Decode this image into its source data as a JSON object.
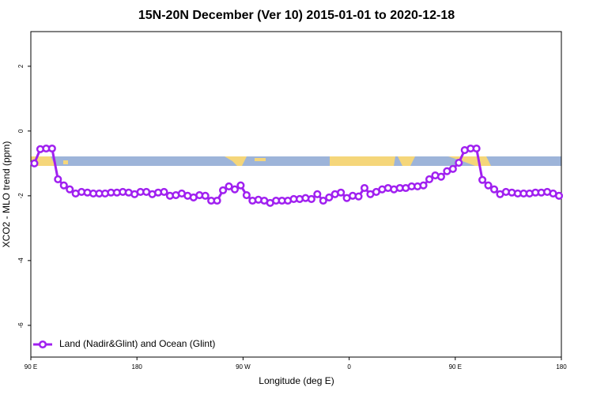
{
  "chart_data": {
    "type": "line",
    "title": "15N-20N December (Ver 10)   2015-01-01 to 2020-12-18",
    "x_label": "Longitude (deg E)",
    "y_label": "XCO2 - MLO trend (ppm)",
    "x": [
      93,
      98,
      103,
      108,
      113,
      118,
      123,
      128,
      133,
      138,
      143,
      148,
      153,
      158,
      163,
      168,
      173,
      178,
      183,
      188,
      193,
      198,
      203,
      208,
      213,
      218,
      223,
      228,
      233,
      238,
      243,
      248,
      253,
      258,
      263,
      268,
      273,
      278,
      283,
      288,
      293,
      298,
      303,
      308,
      313,
      318,
      323,
      328,
      333,
      338,
      343,
      348,
      353,
      358,
      363,
      368,
      373,
      378,
      383,
      388,
      393,
      398,
      403,
      408,
      413,
      418,
      423,
      428,
      433,
      438,
      443,
      448,
      453,
      458,
      463,
      468,
      473,
      478,
      483,
      488,
      493,
      498,
      503,
      508,
      513,
      518,
      523,
      528,
      533,
      538
    ],
    "series": [
      {
        "name": "Land (Nadir&Glint) and Ocean (Glint)",
        "color": "#a020f0",
        "values": [
          -1.0,
          -0.56,
          -0.54,
          -0.54,
          -1.49,
          -1.68,
          -1.8,
          -1.93,
          -1.88,
          -1.9,
          -1.93,
          -1.93,
          -1.93,
          -1.9,
          -1.9,
          -1.88,
          -1.9,
          -1.95,
          -1.88,
          -1.88,
          -1.95,
          -1.9,
          -1.88,
          -2.0,
          -1.98,
          -1.93,
          -2.0,
          -2.05,
          -1.98,
          -2.0,
          -2.15,
          -2.15,
          -1.83,
          -1.71,
          -1.8,
          -1.68,
          -1.98,
          -2.15,
          -2.12,
          -2.15,
          -2.22,
          -2.15,
          -2.15,
          -2.15,
          -2.1,
          -2.1,
          -2.07,
          -2.1,
          -1.95,
          -2.15,
          -2.05,
          -1.95,
          -1.9,
          -2.07,
          -2.0,
          -2.02,
          -1.76,
          -1.95,
          -1.88,
          -1.8,
          -1.76,
          -1.8,
          -1.76,
          -1.76,
          -1.71,
          -1.71,
          -1.68,
          -1.49,
          -1.37,
          -1.41,
          -1.24,
          -1.17,
          -0.98,
          -0.59,
          -0.54,
          -0.54,
          -1.51,
          -1.68,
          -1.8,
          -1.95,
          -1.88,
          -1.9,
          -1.93,
          -1.93,
          -1.93,
          -1.9,
          -1.9,
          -1.88,
          -1.93,
          -2.0
        ]
      }
    ],
    "xlim": [
      90,
      540
    ],
    "xticks": [
      {
        "value": 90,
        "label": "90 E"
      },
      180,
      {
        "value": 270,
        "label": "90 W"
      },
      {
        "value": 360,
        "label": "0"
      },
      {
        "value": 450,
        "label": "90 E"
      },
      {
        "value": 540,
        "label": "180"
      }
    ],
    "ylim": [
      -6.98,
      3.07
    ],
    "yticks": [
      -6,
      -4,
      -2,
      0,
      2
    ],
    "legend": "bottom-left"
  }
}
